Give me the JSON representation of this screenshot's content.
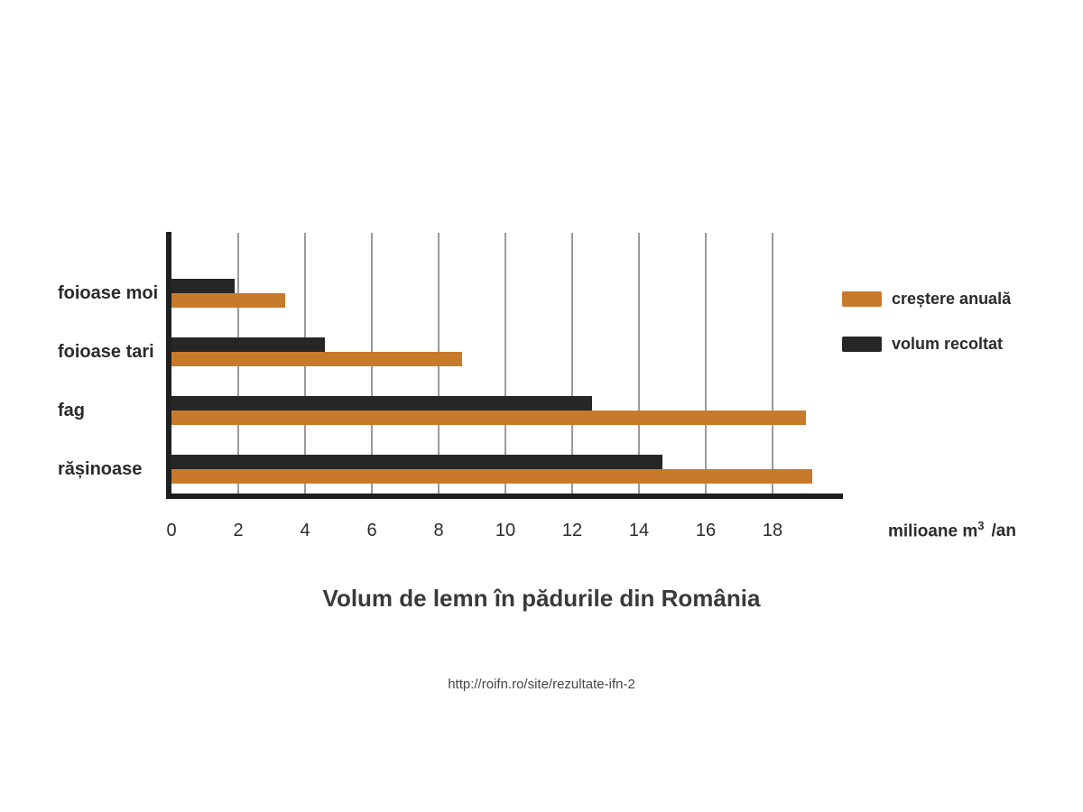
{
  "title": "Volum de lemn în pădurile din România",
  "source": "http://roifn.ro/site/rezultate-ifn-2",
  "axis_unit": {
    "prefix": "milioane m",
    "exponent": "3",
    "suffix": "/an"
  },
  "colors": {
    "background": "#ffffff",
    "axis": "#1f1f1f",
    "gridline": "#9a9a9a",
    "orange_series": "#c87a2b",
    "black_series": "#262626",
    "text": "#2b2b2b",
    "title_text": "#3a3a3a",
    "url_text": "#454545"
  },
  "chart_data": {
    "type": "bar",
    "orientation": "horizontal",
    "title": "Volum de lemn în pădurile din România",
    "categories": [
      "foioase moi",
      "foioase tari",
      "fag",
      "rășinoase"
    ],
    "series": [
      {
        "name": "creștere anuală",
        "color": "#c87a2b",
        "values": [
          3.4,
          8.7,
          19.0,
          19.2
        ]
      },
      {
        "name": "volum recoltat",
        "color": "#262626",
        "values": [
          1.9,
          4.6,
          12.6,
          14.7
        ]
      }
    ],
    "bar_draw_order": [
      "volum recoltat",
      "creștere anuală"
    ],
    "xlabel": "milioane m³ /an",
    "ylabel": "",
    "xlim": [
      0,
      20
    ],
    "xticks": [
      0,
      2,
      4,
      6,
      8,
      10,
      12,
      14,
      16,
      18
    ],
    "grid": "vertical",
    "legend_position": "right"
  }
}
